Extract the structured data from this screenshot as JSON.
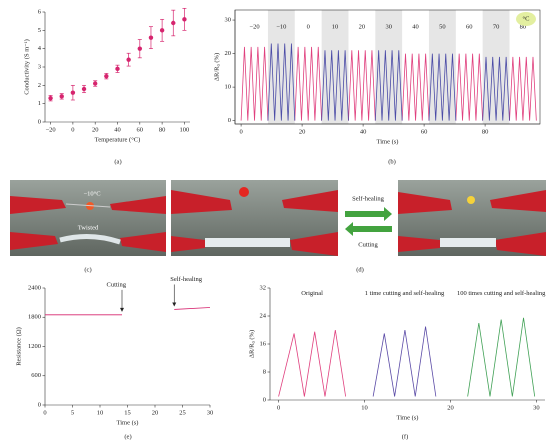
{
  "chart_data": [
    {
      "type": "scatter",
      "x_label": "Temperature (°C)",
      "y_label": "Conductivity (S m⁻¹)",
      "color": "#d6246e",
      "x": [
        -20,
        -10,
        0,
        10,
        20,
        30,
        40,
        50,
        60,
        70,
        80,
        90,
        100
      ],
      "values": [
        1.3,
        1.4,
        1.6,
        1.8,
        2.1,
        2.5,
        2.9,
        3.4,
        4.0,
        4.6,
        5.0,
        5.4,
        5.6
      ],
      "errors": [
        0.15,
        0.15,
        0.4,
        0.2,
        0.15,
        0.15,
        0.2,
        0.35,
        0.5,
        0.6,
        0.6,
        0.7,
        0.6
      ],
      "xlim": [
        -25,
        105
      ],
      "xticks": [
        {
          "value": -20,
          "label": "−20"
        },
        0,
        20,
        40,
        60,
        80,
        100
      ],
      "ylim": [
        0,
        6
      ],
      "yticks": [
        0,
        1,
        2,
        3,
        4,
        5,
        6
      ]
    },
    {
      "type": "line",
      "x_label": "Time (s)",
      "y_label": "ΔR/R₀ (%)",
      "box": true,
      "segment_labels": [
        "−20",
        "−10",
        "0",
        "10",
        "20",
        "30",
        "40",
        "50",
        "60",
        "70",
        "80"
      ],
      "unit_badge": "°C",
      "x": [
        0,
        1.1,
        2.2,
        3.3,
        4.4,
        5.5,
        6.6,
        7.7,
        8.8,
        9.9,
        11,
        12.1,
        13.2,
        14.3,
        15.4,
        16.5,
        17.6,
        18.7,
        19.8,
        20.9,
        22,
        23.1,
        24.2,
        25.3,
        26.4,
        27.5,
        28.6,
        29.7,
        30.8,
        31.9,
        33,
        34.1,
        35.2,
        36.3,
        37.4,
        38.5,
        39.6,
        40.7,
        41.8,
        42.9,
        44,
        45.1,
        46.2,
        47.3,
        48.4,
        49.5,
        50.6,
        51.7,
        52.8,
        53.9,
        55,
        56.1,
        57.2,
        58.3,
        59.4,
        60.5,
        61.6,
        62.7,
        63.8,
        64.9,
        66,
        67.1,
        68.2,
        69.3,
        70.4,
        71.5,
        72.6,
        73.7,
        74.8,
        75.9,
        77,
        78.1,
        79.2,
        80.3,
        81.4,
        82.5,
        83.6,
        84.7,
        85.8,
        86.9,
        88,
        89.1,
        90.2,
        91.3,
        92.4,
        93.5,
        94.6,
        95.7,
        96.8
      ],
      "series": [
        {
          "color": "#e0407e",
          "values": [
            0,
            22,
            0,
            22,
            0,
            22,
            0,
            22,
            0,
            null,
            null,
            null,
            null,
            null,
            null,
            null,
            0,
            22,
            0,
            22,
            0,
            22,
            0,
            22,
            0,
            null,
            null,
            null,
            null,
            null,
            null,
            null,
            0,
            21,
            0,
            21,
            0,
            21,
            0,
            21,
            0,
            null,
            null,
            null,
            null,
            null,
            null,
            null,
            0,
            20,
            0,
            20,
            0,
            20,
            0,
            20,
            0,
            null,
            null,
            null,
            null,
            null,
            null,
            null,
            0,
            20,
            0,
            20,
            0,
            20,
            0,
            20,
            0,
            null,
            null,
            null,
            null,
            null,
            null,
            null,
            0,
            19,
            0,
            19,
            0,
            19,
            0,
            19,
            0
          ]
        },
        {
          "color": "#4b4ba6",
          "values": [
            null,
            null,
            null,
            null,
            null,
            null,
            null,
            null,
            0,
            23,
            0,
            23,
            0,
            23,
            0,
            23,
            0,
            null,
            null,
            null,
            null,
            null,
            null,
            null,
            0,
            21,
            0,
            21,
            0,
            21,
            0,
            21,
            0,
            null,
            null,
            null,
            null,
            null,
            null,
            null,
            0,
            21,
            0,
            21,
            0,
            21,
            0,
            21,
            0,
            null,
            null,
            null,
            null,
            null,
            null,
            null,
            0,
            20,
            0,
            20,
            0,
            20,
            0,
            20,
            0,
            null,
            null,
            null,
            null,
            null,
            null,
            null,
            0,
            19,
            0,
            19,
            0,
            19,
            0,
            19,
            0,
            null,
            null,
            null,
            null,
            null,
            null,
            null,
            null
          ]
        }
      ],
      "xlim": [
        -2,
        98
      ],
      "xticks": [
        0,
        20,
        40,
        60,
        80
      ],
      "ylim": [
        -1,
        33
      ],
      "yticks": [
        0,
        10,
        20,
        30
      ]
    },
    {
      "type": "line",
      "x_label": "Time (s)",
      "y_label": "Resistance (Ω)",
      "annotations": [
        "Cutting",
        "Self-healing"
      ],
      "x": [
        0,
        14,
        19,
        23.5,
        30
      ],
      "series": [
        {
          "color": "#d6246e",
          "values": [
            1850,
            1850,
            null,
            1960,
            2000
          ]
        }
      ],
      "xlim": [
        0,
        30
      ],
      "xticks": [
        0,
        5,
        10,
        15,
        20,
        25,
        30
      ],
      "ylim": [
        0,
        2400
      ],
      "yticks": [
        0,
        600,
        1200,
        1800,
        2400
      ]
    },
    {
      "type": "line",
      "x_label": "Time (s)",
      "y_label": "ΔR/R₀ (%)",
      "x": [
        0,
        1.8,
        3,
        4.2,
        5.4,
        6.6,
        7.8,
        11,
        12.3,
        13.5,
        14.7,
        15.9,
        17.1,
        18.3,
        22,
        23.3,
        24.6,
        25.9,
        27.2,
        28.5,
        29.8
      ],
      "series": [
        {
          "name": "Original",
          "color": "#e0407e",
          "values": [
            1,
            19,
            1,
            19.5,
            1,
            20,
            1,
            null,
            null,
            null,
            null,
            null,
            null,
            null,
            null,
            null,
            null,
            null,
            null,
            null,
            null
          ]
        },
        {
          "name": "1 time cutting and self-healing",
          "color": "#5a4aa6",
          "values": [
            null,
            null,
            null,
            null,
            null,
            null,
            null,
            1,
            19,
            1,
            20,
            1,
            21,
            1,
            null,
            null,
            null,
            null,
            null,
            null,
            null
          ]
        },
        {
          "name": "100 times cutting and self-healing",
          "color": "#3fa054",
          "values": [
            null,
            null,
            null,
            null,
            null,
            null,
            null,
            null,
            null,
            null,
            null,
            null,
            null,
            null,
            1,
            22,
            1,
            23,
            1,
            23.5,
            1
          ]
        }
      ],
      "xlim": [
        -1,
        31
      ],
      "xticks": [
        0,
        10,
        20,
        30
      ],
      "ylim": [
        0,
        32
      ],
      "yticks": [
        0,
        8,
        16,
        24,
        32
      ]
    }
  ],
  "panel_labels": [
    "(a)",
    "(b)",
    "(c)",
    "(d)",
    "(e)",
    "(f)"
  ],
  "photos": {
    "temperature": "−10°C",
    "twisted": "Twisted",
    "self_healing": "Self-healing",
    "cutting": "Cutting"
  }
}
